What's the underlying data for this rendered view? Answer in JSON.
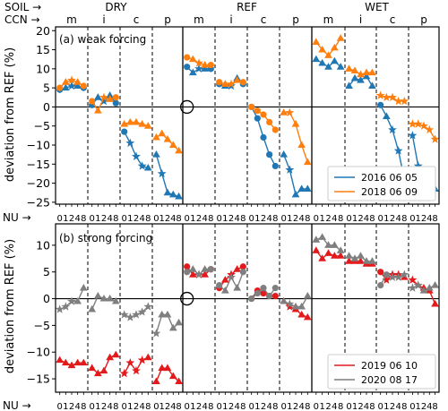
{
  "chart_data": {
    "type": "line",
    "header": {
      "soil_label": "SOIL →",
      "ccn_label": "CCN →",
      "nu_label": "NU →",
      "soil": [
        "DRY",
        "REF",
        "WET"
      ],
      "ccn": [
        "m",
        "i",
        "c",
        "p"
      ],
      "nu": [
        "0",
        "1",
        "2",
        "4",
        "8"
      ]
    },
    "panels": [
      {
        "title": "(a) weak forcing",
        "ylabel": "deviation from REF (%)",
        "ylim": [
          -25.5,
          21
        ],
        "yticks": [
          20,
          15,
          10,
          5,
          0,
          -5,
          -10,
          -15,
          -20,
          -25
        ],
        "legend_position": "lower-right",
        "reference_circle": {
          "block": 4,
          "nu_index": 0,
          "value": 0
        },
        "series": [
          {
            "name": "2016 06 05",
            "color": "#1f77b4",
            "values": [
              [
                4.5,
                5.0,
                5.5,
                5.5,
                5.0
              ],
              [
                0.5,
                2.5,
                1.5,
                3.0,
                1.0
              ],
              [
                -6.5,
                -9.5,
                -13.0,
                -15.5,
                -16.0
              ],
              [
                -12.5,
                -17.5,
                -22.5,
                -23.0,
                -23.5
              ],
              [
                10.5,
                9.0,
                10.0,
                10.0,
                10.0
              ],
              [
                6.0,
                5.5,
                5.5,
                7.5,
                6.0
              ],
              [
                0.0,
                -3.0,
                -8.0,
                -12.5,
                -15.5
              ],
              [
                -12.5,
                -16.5,
                -23.0,
                -21.5,
                -21.5
              ],
              [
                12.5,
                11.5,
                10.5,
                12.0,
                10.5
              ],
              [
                5.5,
                7.5,
                7.0,
                8.0,
                5.5
              ],
              [
                0.5,
                -2.5,
                -6.0,
                -11.5,
                -19.0
              ],
              [
                -7.5,
                -15.5,
                -20.5,
                -21.5,
                -21.5
              ]
            ],
            "markers": [
              [
                "circle",
                "triangle",
                "star",
                "triangle",
                "circle"
              ],
              [
                "circle",
                "triangle",
                "star",
                "triangle",
                "circle"
              ],
              [
                "circle",
                "star",
                "star",
                "star",
                "triangle"
              ],
              [
                "triangle",
                "star",
                "triangle",
                "triangle",
                "triangle"
              ],
              [
                "circle",
                "triangle",
                "star",
                "triangle",
                "circle"
              ],
              [
                "circle",
                "triangle",
                "star",
                "triangle",
                "circle"
              ],
              [
                "circle",
                "circle",
                "circle",
                "circle",
                "circle"
              ],
              [
                "triangle",
                "star",
                "triangle",
                "triangle",
                "triangle"
              ],
              [
                "triangle",
                "triangle",
                "triangle",
                "triangle",
                "triangle"
              ],
              [
                "triangle",
                "triangle",
                "triangle",
                "triangle",
                "triangle"
              ],
              [
                "circle",
                "triangle",
                "star",
                "star",
                "triangle"
              ],
              [
                "star",
                "star",
                "triangle",
                "triangle",
                "triangle"
              ]
            ]
          },
          {
            "name": "2018 06 09",
            "color": "#ff7f0e",
            "values": [
              [
                5.0,
                6.5,
                7.0,
                6.5,
                5.5
              ],
              [
                1.5,
                -1.0,
                2.5,
                2.0,
                2.5
              ],
              [
                -4.5,
                -4.0,
                -4.0,
                -4.5,
                -5.0
              ],
              [
                -8.0,
                -7.0,
                -8.5,
                -10.0,
                -11.5
              ],
              [
                13.0,
                12.5,
                11.5,
                11.0,
                11.0
              ],
              [
                6.5,
                6.0,
                6.0,
                7.0,
                6.5
              ],
              [
                0.0,
                -1.0,
                -2.0,
                -4.0,
                -6.0
              ],
              [
                -1.5,
                -1.5,
                -4.5,
                -10.0,
                -14.5
              ],
              [
                17.0,
                15.0,
                13.5,
                15.5,
                18.0
              ],
              [
                10.0,
                9.5,
                8.5,
                9.0,
                9.0
              ],
              [
                3.0,
                2.5,
                2.5,
                1.5,
                1.5
              ],
              [
                -4.5,
                -4.5,
                -5.0,
                -6.0,
                -8.5
              ]
            ],
            "markers": [
              [
                "circle",
                "triangle",
                "star",
                "triangle",
                "circle"
              ],
              [
                "circle",
                "triangle",
                "star",
                "triangle",
                "circle"
              ],
              [
                "triangle",
                "triangle",
                "triangle",
                "triangle",
                "triangle"
              ],
              [
                "triangle",
                "triangle",
                "triangle",
                "triangle",
                "triangle"
              ],
              [
                "circle",
                "triangle",
                "star",
                "triangle",
                "circle"
              ],
              [
                "circle",
                "triangle",
                "star",
                "triangle",
                "circle"
              ],
              [
                "circle",
                "circle",
                "circle",
                "circle",
                "circle"
              ],
              [
                "triangle",
                "star",
                "triangle",
                "triangle",
                "triangle"
              ],
              [
                "triangle",
                "triangle",
                "triangle",
                "triangle",
                "triangle"
              ],
              [
                "triangle",
                "triangle",
                "triangle",
                "triangle",
                "triangle"
              ],
              [
                "star",
                "star",
                "star",
                "star",
                "star"
              ],
              [
                "star",
                "star",
                "star",
                "star",
                "star"
              ]
            ]
          }
        ]
      },
      {
        "title": "(b) strong forcing",
        "ylabel": "deviation from REF (%)",
        "ylim": [
          -17.5,
          14
        ],
        "yticks": [
          10,
          5,
          0,
          -5,
          -10,
          -15
        ],
        "legend_position": "lower-right",
        "reference_circle": {
          "block": 4,
          "nu_index": 0,
          "value": 0
        },
        "series": [
          {
            "name": "2019 06 10",
            "color": "#e31a1c",
            "values": [
              [
                -11.5,
                -12.0,
                -12.5,
                -12.0,
                -12.0
              ],
              [
                -13.0,
                -14.0,
                -13.5,
                -11.0,
                -10.5
              ],
              [
                -14.0,
                -12.0,
                -13.5,
                -11.5,
                -11.0
              ],
              [
                -15.5,
                -13.0,
                -13.0,
                -14.5,
                -15.5
              ],
              [
                6.0,
                4.5,
                4.5,
                4.5,
                5.5
              ],
              [
                2.0,
                3.5,
                4.5,
                5.5,
                6.0
              ],
              [
                0.0,
                1.5,
                1.0,
                0.5,
                0.5
              ],
              [
                -0.5,
                -1.5,
                -2.0,
                -3.0,
                -3.5
              ],
              [
                9.0,
                7.5,
                8.5,
                8.0,
                8.0
              ],
              [
                7.0,
                7.0,
                7.0,
                6.5,
                6.5
              ],
              [
                5.0,
                3.5,
                4.5,
                4.5,
                4.0
              ],
              [
                3.5,
                2.5,
                2.0,
                1.5,
                -1.0
              ]
            ],
            "markers": [
              [
                "triangle",
                "triangle",
                "triangle",
                "triangle",
                "triangle"
              ],
              [
                "triangle",
                "triangle",
                "triangle",
                "triangle",
                "triangle"
              ],
              [
                "star",
                "star",
                "star",
                "star",
                "triangle"
              ],
              [
                "triangle",
                "triangle",
                "triangle",
                "triangle",
                "triangle"
              ],
              [
                "circle",
                "triangle",
                "star",
                "triangle",
                "circle"
              ],
              [
                "circle",
                "triangle",
                "star",
                "triangle",
                "circle"
              ],
              [
                "circle",
                "circle",
                "circle",
                "circle",
                "circle"
              ],
              [
                "triangle",
                "star",
                "triangle",
                "triangle",
                "triangle"
              ],
              [
                "triangle",
                "triangle",
                "triangle",
                "triangle",
                "triangle"
              ],
              [
                "triangle",
                "triangle",
                "triangle",
                "triangle",
                "triangle"
              ],
              [
                "circle",
                "star",
                "star",
                "star",
                "triangle"
              ],
              [
                "star",
                "star",
                "triangle",
                "triangle",
                "triangle"
              ]
            ]
          },
          {
            "name": "2020 08 17",
            "color": "#7f7f7f",
            "values": [
              [
                -2.0,
                -1.5,
                -0.5,
                -0.5,
                2.0
              ],
              [
                -2.0,
                0.5,
                0.0,
                0.0,
                -0.5
              ],
              [
                -3.0,
                -3.5,
                -3.0,
                -2.5,
                -1.5
              ],
              [
                -6.5,
                -3.0,
                -3.0,
                -5.5,
                -4.5
              ],
              [
                5.0,
                5.5,
                4.5,
                5.5,
                5.5
              ],
              [
                2.5,
                1.5,
                4.0,
                2.0,
                5.0
              ],
              [
                0.0,
                1.0,
                2.0,
                0.5,
                2.0
              ],
              [
                -0.5,
                -1.0,
                -1.5,
                -1.5,
                0.5
              ],
              [
                11.0,
                11.5,
                10.0,
                10.0,
                9.0
              ],
              [
                8.0,
                7.5,
                8.0,
                7.0,
                7.0
              ],
              [
                2.5,
                4.5,
                4.0,
                4.0,
                4.5
              ],
              [
                2.0,
                2.5,
                1.5,
                2.0,
                2.5
              ]
            ],
            "markers": [
              [
                "star",
                "star",
                "star",
                "triangle",
                "triangle"
              ],
              [
                "triangle",
                "triangle",
                "triangle",
                "triangle",
                "triangle"
              ],
              [
                "star",
                "star",
                "star",
                "star",
                "star"
              ],
              [
                "star",
                "triangle",
                "triangle",
                "triangle",
                "triangle"
              ],
              [
                "circle",
                "triangle",
                "star",
                "triangle",
                "circle"
              ],
              [
                "circle",
                "triangle",
                "star",
                "triangle",
                "circle"
              ],
              [
                "circle",
                "circle",
                "circle",
                "circle",
                "circle"
              ],
              [
                "triangle",
                "star",
                "triangle",
                "triangle",
                "triangle"
              ],
              [
                "triangle",
                "triangle",
                "triangle",
                "triangle",
                "triangle"
              ],
              [
                "triangle",
                "triangle",
                "triangle",
                "triangle",
                "triangle"
              ],
              [
                "circle",
                "circle",
                "star",
                "star",
                "star"
              ],
              [
                "star",
                "star",
                "triangle",
                "triangle",
                "triangle"
              ]
            ]
          }
        ]
      }
    ]
  }
}
